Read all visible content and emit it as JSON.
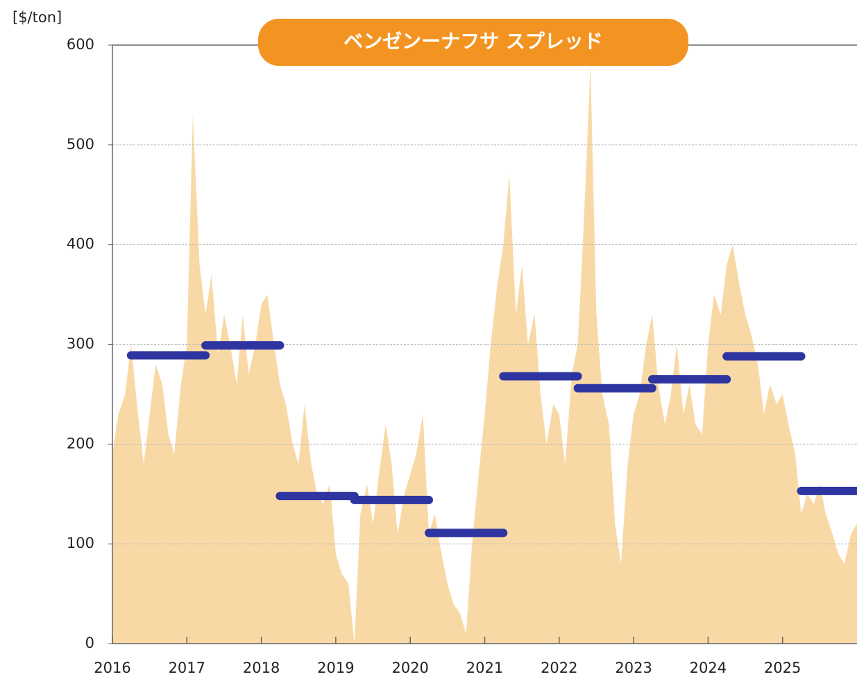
{
  "chart_data": {
    "type": "area",
    "title": "ベンゼンーナフサ スプレッド",
    "y_axis_label": "[$/ton]",
    "color": "#f8d9a6",
    "segment_color": "#2e35a0",
    "grid": true,
    "xlim": [
      2016,
      2026
    ],
    "ylim": [
      0,
      600
    ],
    "xticks": [
      2016,
      2017,
      2018,
      2019,
      2020,
      2021,
      2022,
      2023,
      2024,
      2025
    ],
    "yticks": [
      0,
      100,
      200,
      300,
      400,
      500,
      600
    ],
    "x": [
      2016.0,
      2016.08,
      2016.17,
      2016.25,
      2016.33,
      2016.42,
      2016.5,
      2016.58,
      2016.67,
      2016.75,
      2016.83,
      2016.92,
      2017.0,
      2017.08,
      2017.17,
      2017.25,
      2017.33,
      2017.42,
      2017.5,
      2017.58,
      2017.67,
      2017.75,
      2017.83,
      2017.92,
      2018.0,
      2018.08,
      2018.17,
      2018.25,
      2018.33,
      2018.42,
      2018.5,
      2018.58,
      2018.67,
      2018.75,
      2018.83,
      2018.92,
      2019.0,
      2019.08,
      2019.17,
      2019.25,
      2019.33,
      2019.42,
      2019.5,
      2019.58,
      2019.67,
      2019.75,
      2019.83,
      2019.92,
      2020.0,
      2020.08,
      2020.17,
      2020.25,
      2020.33,
      2020.42,
      2020.5,
      2020.58,
      2020.67,
      2020.75,
      2020.83,
      2020.92,
      2021.0,
      2021.08,
      2021.17,
      2021.25,
      2021.33,
      2021.42,
      2021.5,
      2021.58,
      2021.67,
      2021.75,
      2021.83,
      2021.92,
      2022.0,
      2022.08,
      2022.17,
      2022.25,
      2022.33,
      2022.42,
      2022.5,
      2022.58,
      2022.67,
      2022.75,
      2022.83,
      2022.92,
      2023.0,
      2023.08,
      2023.17,
      2023.25,
      2023.33,
      2023.42,
      2023.5,
      2023.58,
      2023.67,
      2023.75,
      2023.83,
      2023.92,
      2024.0,
      2024.08,
      2024.17,
      2024.25,
      2024.33,
      2024.42,
      2024.5,
      2024.58,
      2024.67,
      2024.75,
      2024.83,
      2024.92,
      2025.0,
      2025.08,
      2025.17,
      2025.25,
      2025.33,
      2025.42,
      2025.5,
      2025.58,
      2025.67,
      2025.75,
      2025.83,
      2025.92,
      2026.0
    ],
    "values": [
      190,
      230,
      250,
      300,
      240,
      180,
      230,
      280,
      260,
      210,
      190,
      260,
      300,
      530,
      380,
      330,
      370,
      290,
      330,
      300,
      260,
      330,
      270,
      300,
      340,
      350,
      300,
      260,
      240,
      200,
      180,
      240,
      180,
      150,
      140,
      160,
      90,
      70,
      60,
      0,
      130,
      160,
      120,
      170,
      220,
      180,
      110,
      150,
      170,
      190,
      230,
      110,
      130,
      90,
      60,
      40,
      30,
      10,
      100,
      170,
      230,
      300,
      360,
      400,
      470,
      330,
      380,
      300,
      330,
      250,
      200,
      240,
      230,
      180,
      270,
      300,
      420,
      580,
      330,
      250,
      220,
      120,
      80,
      180,
      230,
      250,
      300,
      330,
      260,
      220,
      250,
      300,
      230,
      260,
      220,
      210,
      300,
      350,
      330,
      380,
      400,
      360,
      330,
      310,
      280,
      230,
      260,
      240,
      250,
      220,
      190,
      130,
      150,
      140,
      160,
      130,
      110,
      90,
      80,
      110,
      120
    ],
    "segments": [
      {
        "start": 2016.25,
        "end": 2017.25,
        "value": 289
      },
      {
        "start": 2017.25,
        "end": 2018.25,
        "value": 299
      },
      {
        "start": 2018.25,
        "end": 2019.25,
        "value": 148
      },
      {
        "start": 2019.25,
        "end": 2020.25,
        "value": 144
      },
      {
        "start": 2020.25,
        "end": 2021.25,
        "value": 111
      },
      {
        "start": 2021.25,
        "end": 2022.25,
        "value": 268
      },
      {
        "start": 2022.25,
        "end": 2023.25,
        "value": 256
      },
      {
        "start": 2023.25,
        "end": 2024.25,
        "value": 265
      },
      {
        "start": 2024.25,
        "end": 2025.25,
        "value": 288
      },
      {
        "start": 2025.25,
        "end": 2026.0,
        "value": 153
      }
    ]
  }
}
